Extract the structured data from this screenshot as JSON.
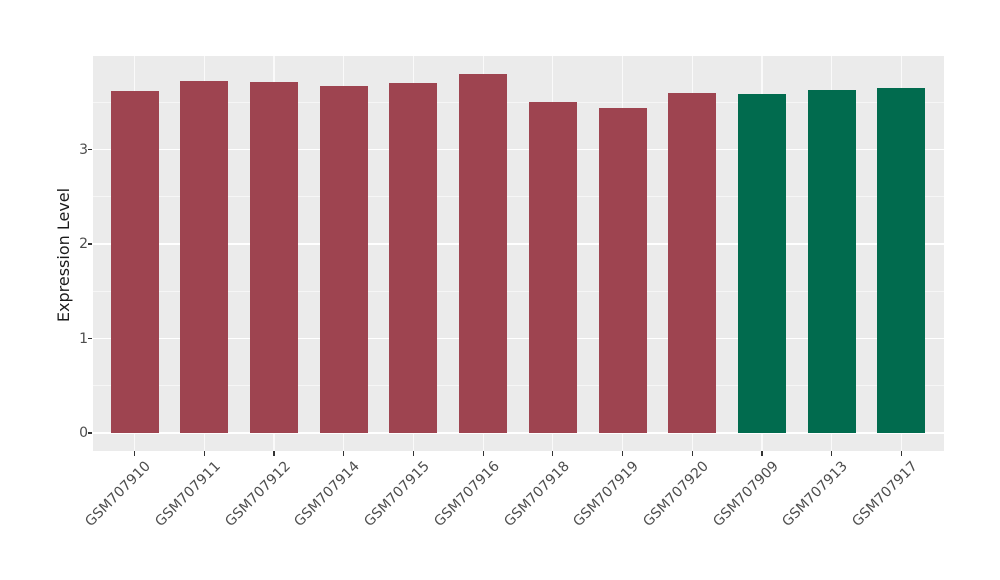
{
  "chart_data": {
    "type": "bar",
    "title": "",
    "ylabel": "Expression Level",
    "xlabel": "",
    "ylim": [
      0,
      4
    ],
    "yticks": [
      0,
      1,
      2,
      3
    ],
    "yticks_minor": [
      0.5,
      1.5,
      2.5,
      3.5
    ],
    "grid": "white major and minor horizontal lines on gray panel; vertical major lines at category centers",
    "legend": "none",
    "categories": [
      "GSM707910",
      "GSM707911",
      "GSM707912",
      "GSM707914",
      "GSM707915",
      "GSM707916",
      "GSM707918",
      "GSM707919",
      "GSM707920",
      "GSM707909",
      "GSM707913",
      "GSM707917"
    ],
    "values": [
      3.62,
      3.73,
      3.71,
      3.67,
      3.7,
      3.8,
      3.5,
      3.44,
      3.6,
      3.59,
      3.63,
      3.65
    ],
    "groups": [
      "group1",
      "group1",
      "group1",
      "group1",
      "group1",
      "group1",
      "group1",
      "group1",
      "group1",
      "group2",
      "group2",
      "group2"
    ],
    "group_colors": {
      "group1": "#9E4450",
      "group2": "#016B4E"
    }
  },
  "colors": {
    "figure_background": "#FFFFFF",
    "panel_background": "#EBEBEB",
    "gridline": "#FFFFFF",
    "axis_text": "#4D4D4D",
    "axis_title": "#1A1A1A",
    "tick_mark": "#333333"
  }
}
